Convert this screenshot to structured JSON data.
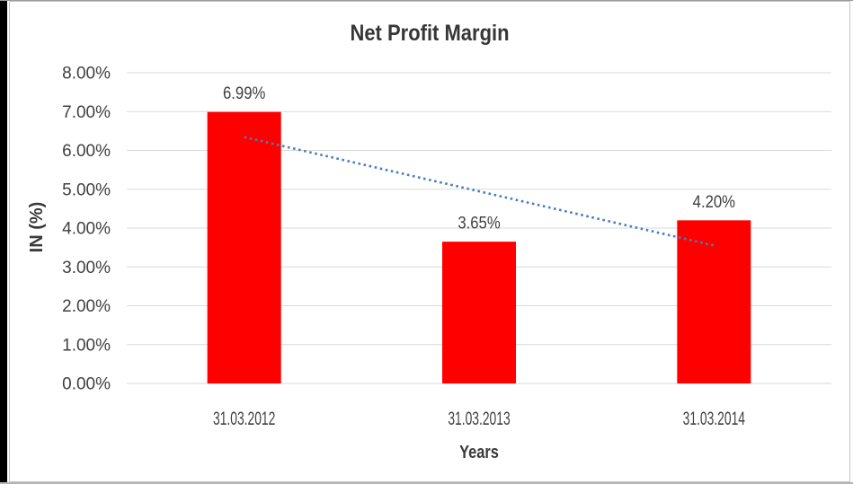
{
  "chart_data": {
    "type": "bar",
    "title": "Net Profit Margin",
    "xlabel": "Years",
    "ylabel": "IN (%)",
    "categories": [
      "31.03.2012",
      "31.03.2013",
      "31.03.2014"
    ],
    "series": [
      {
        "name": "Net Profit Margin",
        "values": [
          6.99,
          3.65,
          4.2
        ]
      }
    ],
    "data_labels": [
      "6.99%",
      "3.65%",
      "4.20%"
    ],
    "ylim": [
      0,
      8
    ],
    "ytick_step": 1,
    "ytick_labels": [
      "0.00%",
      "1.00%",
      "2.00%",
      "3.00%",
      "4.00%",
      "5.00%",
      "6.00%",
      "7.00%",
      "8.00%"
    ],
    "grid": true,
    "legend": "none",
    "bar_color": "#ff0000",
    "gridline_color": "#d9d9d9",
    "trendline": {
      "type": "linear",
      "style": "dotted",
      "color": "#4a7ebb"
    }
  }
}
